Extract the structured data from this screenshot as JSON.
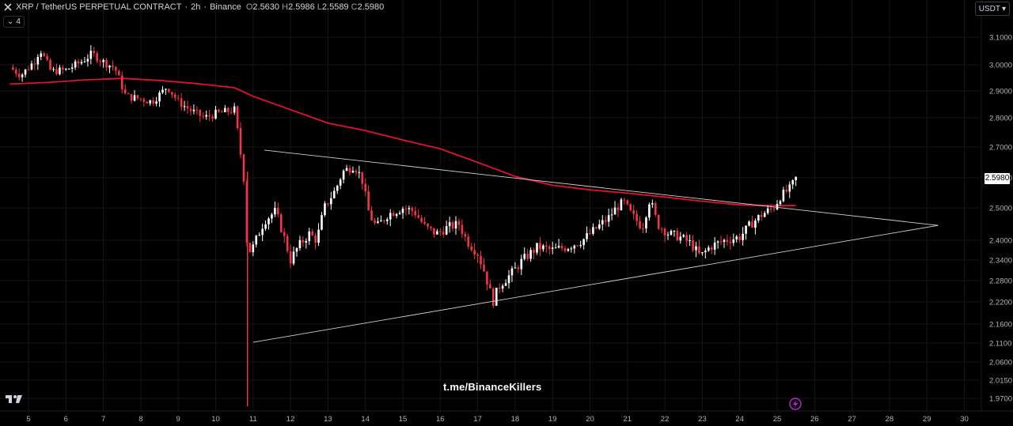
{
  "header": {
    "symbol": "XRP / TetherUS PERPETUAL CONTRACT",
    "interval": "2h",
    "exchange": "Binance",
    "separator": " · ",
    "ohlc": [
      {
        "k": "O",
        "v": "2.5630"
      },
      {
        "k": "H",
        "v": "2.5986"
      },
      {
        "k": "L",
        "v": "2.5589"
      },
      {
        "k": "C",
        "v": "2.5980"
      }
    ],
    "indicator_count": "4"
  },
  "currency_button": "USDT",
  "last_price_label": "2.5980",
  "watermark": "t.me/BinanceKillers",
  "colors": {
    "up": "#ffffff",
    "down": "#f23645",
    "ma": "#e2112f",
    "trendline": "#cfcfcf",
    "grid": "#161616",
    "axis_text": "#b2b5be"
  },
  "chart_data": {
    "type": "candlestick",
    "y_ticks": [
      "3.1000",
      "3.0000",
      "2.9000",
      "2.8000",
      "2.7000",
      "2.6000",
      "2.5000",
      "2.4000",
      "2.3400",
      "2.2800",
      "2.2200",
      "2.1600",
      "2.1100",
      "2.0600",
      "2.0150",
      "1.9700"
    ],
    "x_ticks": [
      "5",
      "6",
      "7",
      "8",
      "9",
      "10",
      "11",
      "12",
      "13",
      "14",
      "15",
      "16",
      "17",
      "18",
      "19",
      "20",
      "21",
      "22",
      "23",
      "24",
      "25",
      "26",
      "27",
      "28",
      "29",
      "30"
    ],
    "ma_line": [
      [
        4.5,
        2.926
      ],
      [
        5.5,
        2.932
      ],
      [
        6.5,
        2.942
      ],
      [
        7.5,
        2.948
      ],
      [
        8.5,
        2.94
      ],
      [
        9.5,
        2.928
      ],
      [
        10.5,
        2.912
      ],
      [
        11.0,
        2.88
      ],
      [
        12.0,
        2.83
      ],
      [
        13.0,
        2.782
      ],
      [
        14.0,
        2.756
      ],
      [
        15.0,
        2.724
      ],
      [
        16.0,
        2.694
      ],
      [
        17.0,
        2.65
      ],
      [
        18.0,
        2.605
      ],
      [
        19.0,
        2.575
      ],
      [
        20.0,
        2.56
      ],
      [
        21.0,
        2.549
      ],
      [
        22.0,
        2.536
      ],
      [
        23.0,
        2.522
      ],
      [
        24.0,
        2.51
      ],
      [
        24.8,
        2.507
      ],
      [
        25.5,
        2.508
      ]
    ],
    "trendlines": [
      {
        "from": [
          11.3,
          2.69
        ],
        "to": [
          29.3,
          2.446
        ]
      },
      {
        "from": [
          11.0,
          2.112
        ],
        "to": [
          29.3,
          2.446
        ]
      }
    ],
    "price_path": [
      [
        4.5,
        2.99
      ],
      [
        4.8,
        2.96
      ],
      [
        5.2,
        3.02
      ],
      [
        5.3,
        3.06
      ],
      [
        5.6,
        2.975
      ],
      [
        6.0,
        2.98
      ],
      [
        6.4,
        3.01
      ],
      [
        6.7,
        3.04
      ],
      [
        7.0,
        3.01
      ],
      [
        7.3,
        2.99
      ],
      [
        7.6,
        2.88
      ],
      [
        8.0,
        2.87
      ],
      [
        8.3,
        2.86
      ],
      [
        8.6,
        2.9
      ],
      [
        8.7,
        2.918
      ],
      [
        9.0,
        2.86
      ],
      [
        9.3,
        2.83
      ],
      [
        9.7,
        2.8
      ],
      [
        10.0,
        2.815
      ],
      [
        10.5,
        2.83
      ],
      [
        10.6,
        2.74
      ],
      [
        10.75,
        2.6
      ],
      [
        10.85,
        2.36
      ],
      [
        11.0,
        2.38
      ],
      [
        11.3,
        2.46
      ],
      [
        11.6,
        2.49
      ],
      [
        11.8,
        2.42
      ],
      [
        12.0,
        2.34
      ],
      [
        12.2,
        2.38
      ],
      [
        12.5,
        2.42
      ],
      [
        12.7,
        2.4
      ],
      [
        12.9,
        2.5
      ],
      [
        13.2,
        2.56
      ],
      [
        13.4,
        2.62
      ],
      [
        13.7,
        2.64
      ],
      [
        13.9,
        2.6
      ],
      [
        14.1,
        2.48
      ],
      [
        14.3,
        2.44
      ],
      [
        14.6,
        2.48
      ],
      [
        15.0,
        2.5
      ],
      [
        15.3,
        2.49
      ],
      [
        15.6,
        2.44
      ],
      [
        15.9,
        2.42
      ],
      [
        16.2,
        2.44
      ],
      [
        16.5,
        2.45
      ],
      [
        16.7,
        2.4
      ],
      [
        17.0,
        2.36
      ],
      [
        17.2,
        2.3
      ],
      [
        17.4,
        2.22
      ],
      [
        17.6,
        2.27
      ],
      [
        17.9,
        2.3
      ],
      [
        18.2,
        2.34
      ],
      [
        18.6,
        2.38
      ],
      [
        19.0,
        2.37
      ],
      [
        19.4,
        2.38
      ],
      [
        19.8,
        2.4
      ],
      [
        20.2,
        2.44
      ],
      [
        20.5,
        2.47
      ],
      [
        20.7,
        2.5
      ],
      [
        20.9,
        2.52
      ],
      [
        21.1,
        2.48
      ],
      [
        21.4,
        2.44
      ],
      [
        21.6,
        2.53
      ],
      [
        21.8,
        2.45
      ],
      [
        22.1,
        2.42
      ],
      [
        22.4,
        2.41
      ],
      [
        22.7,
        2.39
      ],
      [
        22.95,
        2.35
      ],
      [
        23.2,
        2.38
      ],
      [
        23.6,
        2.4
      ],
      [
        24.0,
        2.41
      ],
      [
        24.3,
        2.45
      ],
      [
        24.6,
        2.48
      ],
      [
        24.9,
        2.5
      ],
      [
        25.1,
        2.54
      ],
      [
        25.35,
        2.565
      ],
      [
        25.5,
        2.598
      ]
    ]
  }
}
